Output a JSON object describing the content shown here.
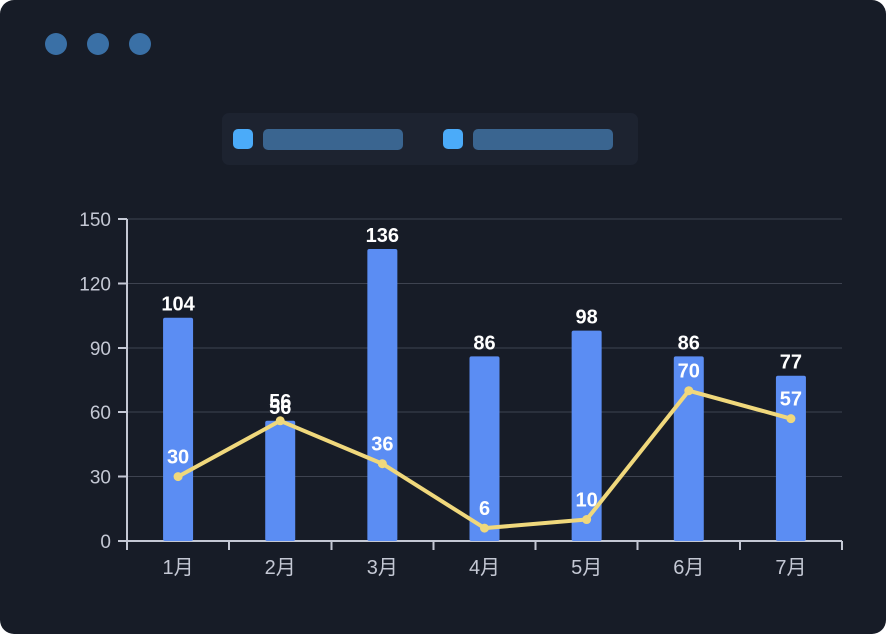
{
  "window": {
    "background_color": "#171c27",
    "dots": [
      {
        "name": "window-dot-1",
        "color": "#3a70a6"
      },
      {
        "name": "window-dot-2",
        "color": "#3a70a6"
      },
      {
        "name": "window-dot-3",
        "color": "#3a70a6"
      }
    ]
  },
  "legend": {
    "position": "top-center",
    "panel_color": "#1d2330",
    "items": [
      {
        "name": "legend-item-1",
        "swatch_color": "#4babf9",
        "label_bar_color": "#3a6590"
      },
      {
        "name": "legend-item-2",
        "swatch_color": "#4babf9",
        "label_bar_color": "#3a6590"
      }
    ]
  },
  "chart_data": {
    "type": "bar",
    "title": "",
    "xlabel": "",
    "ylabel": "",
    "categories": [
      "1月",
      "2月",
      "3月",
      "4月",
      "5月",
      "6月",
      "7月"
    ],
    "series": [
      {
        "name": "bar-series",
        "type": "bar",
        "color": "#5b8df3",
        "values": [
          104,
          56,
          136,
          86,
          98,
          86,
          77
        ]
      },
      {
        "name": "line-series",
        "type": "line",
        "color": "#f0d87c",
        "values": [
          30,
          56,
          36,
          6,
          10,
          70,
          57
        ]
      }
    ],
    "ylim": [
      0,
      150
    ],
    "yticks": [
      0,
      30,
      60,
      90,
      120,
      150
    ],
    "grid": true,
    "legend_position": "top-center",
    "label_color": "#ffffff",
    "axis_color": "#c4c8d4",
    "grid_color": "#3e4350"
  }
}
